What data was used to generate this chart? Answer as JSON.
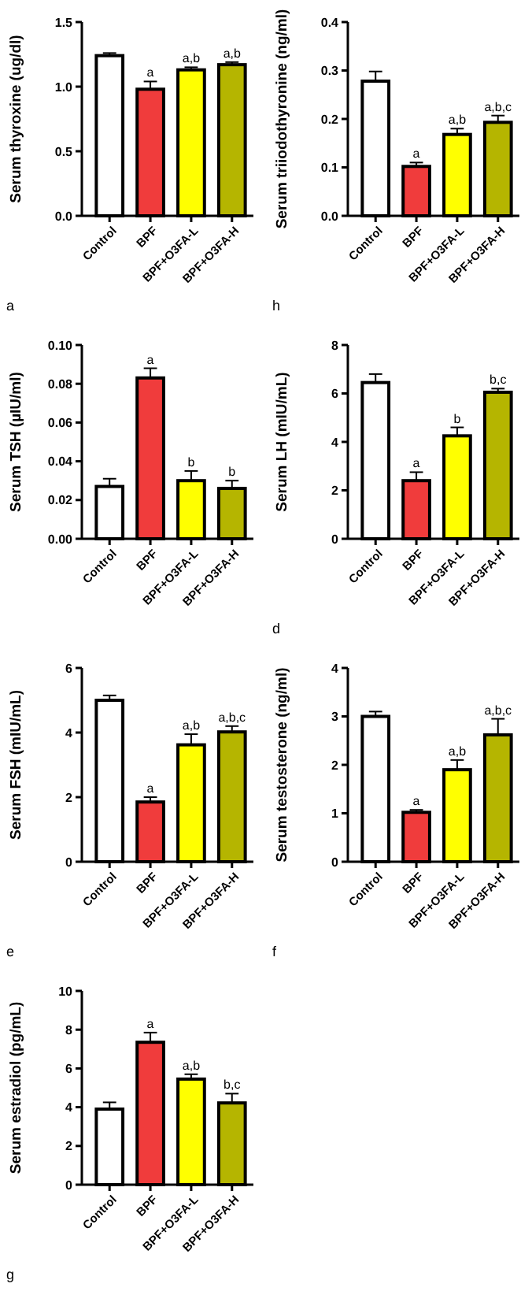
{
  "chart_data": [
    {
      "type": "bar",
      "ylabel": "Serum thyroxine (ug/dl)",
      "categories": [
        "Control",
        "BPF",
        "BPF+O3FA-L",
        "BPF+O3FA-H"
      ],
      "colors": [
        "#ffffff",
        "#f03c3c",
        "#ffff00",
        "#b5b500"
      ],
      "values": [
        1.24,
        0.98,
        1.13,
        1.17
      ],
      "errors": [
        [
          1.24,
          1.26
        ],
        [
          0.98,
          1.04
        ],
        [
          1.13,
          1.15
        ],
        [
          1.17,
          1.19
        ]
      ],
      "ylim": [
        0,
        1.5
      ],
      "yticks": [
        {
          "value": 0,
          "label": "0.0"
        },
        0.5,
        {
          "value": 1,
          "label": "1.0"
        },
        1.5
      ],
      "annotations": [
        {
          "text": "a",
          "x": "BPF",
          "y": 1.04
        },
        {
          "text": "a,b",
          "x": "BPF+O3FA-L",
          "y": 1.15
        },
        {
          "text": "a,b",
          "x": "BPF+O3FA-H",
          "y": 1.19
        },
        "a"
      ]
    },
    {
      "type": "bar",
      "ylabel": "Serum triiodothyronine (ng/ml)",
      "categories": [
        "Control",
        "BPF",
        "BPF+O3FA-L",
        "BPF+O3FA-H"
      ],
      "colors": [
        "#ffffff",
        "#f03c3c",
        "#ffff00",
        "#b5b500"
      ],
      "values": [
        0.278,
        0.102,
        0.168,
        0.193
      ],
      "errors": [
        [
          0.278,
          0.298
        ],
        [
          0.102,
          0.11
        ],
        [
          0.168,
          0.18
        ],
        [
          0.193,
          0.207
        ]
      ],
      "ylim": [
        0,
        0.4
      ],
      "yticks": [
        {
          "value": 0,
          "label": "0.0"
        },
        0.1,
        0.2,
        0.3,
        0.4
      ],
      "annotations": [
        {
          "text": "a",
          "x": "BPF",
          "y": 0.11
        },
        {
          "text": "a,b",
          "x": "BPF+O3FA-L",
          "y": 0.18
        },
        {
          "text": "a,b,c",
          "x": "BPF+O3FA-H",
          "y": 0.207
        },
        "h"
      ]
    },
    {
      "type": "bar",
      "ylabel": "Serum TSH (µIU/ml)",
      "categories": [
        "Control",
        "BPF",
        "BPF+O3FA-L",
        "BPF+O3FA-H"
      ],
      "colors": [
        "#ffffff",
        "#f03c3c",
        "#ffff00",
        "#b5b500"
      ],
      "values": [
        0.027,
        0.083,
        0.03,
        0.026
      ],
      "errors": [
        [
          0.027,
          0.031
        ],
        [
          0.083,
          0.088
        ],
        [
          0.03,
          0.035
        ],
        [
          0.026,
          0.03
        ]
      ],
      "ylim": [
        0,
        0.1
      ],
      "yticks": [
        {
          "value": 0,
          "label": "0.00"
        },
        0.02,
        0.04,
        0.06,
        0.08,
        {
          "value": 0.1,
          "label": "0.10"
        }
      ],
      "annotations": [
        {
          "text": "a",
          "x": "BPF",
          "y": 0.088
        },
        {
          "text": "b",
          "x": "BPF+O3FA-L",
          "y": 0.035
        },
        {
          "text": "b",
          "x": "BPF+O3FA-H",
          "y": 0.03
        }
      ]
    },
    {
      "type": "bar",
      "ylabel": "Serum LH (mIU/mL)",
      "categories": [
        "Control",
        "BPF",
        "BPF+O3FA-L",
        "BPF+O3FA-H"
      ],
      "colors": [
        "#ffffff",
        "#f03c3c",
        "#ffff00",
        "#b5b500"
      ],
      "values": [
        6.45,
        2.4,
        4.25,
        6.05
      ],
      "errors": [
        [
          6.45,
          6.8
        ],
        [
          2.4,
          2.75
        ],
        [
          4.25,
          4.6
        ],
        [
          6.05,
          6.2
        ]
      ],
      "ylim": [
        0,
        8
      ],
      "yticks": [
        0,
        2,
        4,
        6,
        8
      ],
      "annotations": [
        {
          "text": "a",
          "x": "BPF",
          "y": 2.75
        },
        {
          "text": "b",
          "x": "BPF+O3FA-L",
          "y": 4.6
        },
        {
          "text": "b,c",
          "x": "BPF+O3FA-H",
          "y": 6.2
        },
        "d"
      ]
    },
    {
      "type": "bar",
      "ylabel": "Serum FSH (mIU/mL)",
      "categories": [
        "Control",
        "BPF",
        "BPF+O3FA-L",
        "BPF+O3FA-H"
      ],
      "colors": [
        "#ffffff",
        "#f03c3c",
        "#ffff00",
        "#b5b500"
      ],
      "values": [
        5.0,
        1.85,
        3.62,
        4.02
      ],
      "errors": [
        [
          5.0,
          5.15
        ],
        [
          1.85,
          2.0
        ],
        [
          3.62,
          3.95
        ],
        [
          4.02,
          4.2
        ]
      ],
      "ylim": [
        0,
        6
      ],
      "yticks": [
        0,
        2,
        4,
        6
      ],
      "annotations": [
        {
          "text": "a",
          "x": "BPF",
          "y": 2.0
        },
        {
          "text": "a,b",
          "x": "BPF+O3FA-L",
          "y": 3.95
        },
        {
          "text": "a,b,c",
          "x": "BPF+O3FA-H",
          "y": 4.2
        },
        "e"
      ]
    },
    {
      "type": "bar",
      "ylabel": "Serum testosterone (ng/ml)",
      "categories": [
        "Control",
        "BPF",
        "BPF+O3FA-L",
        "BPF+O3FA-H"
      ],
      "colors": [
        "#ffffff",
        "#f03c3c",
        "#ffff00",
        "#b5b500"
      ],
      "values": [
        3.0,
        1.02,
        1.9,
        2.62
      ],
      "errors": [
        [
          3.0,
          3.1
        ],
        [
          1.02,
          1.07
        ],
        [
          1.9,
          2.1
        ],
        [
          2.62,
          2.95
        ]
      ],
      "ylim": [
        0,
        4
      ],
      "yticks": [
        0,
        1,
        2,
        3,
        4
      ],
      "annotations": [
        {
          "text": "a",
          "x": "BPF",
          "y": 1.07
        },
        {
          "text": "a,b",
          "x": "BPF+O3FA-L",
          "y": 2.1
        },
        {
          "text": "a,b,c",
          "x": "BPF+O3FA-H",
          "y": 2.95
        },
        "f"
      ]
    },
    {
      "type": "bar",
      "ylabel": "Serum estradiol (pg/mL)",
      "categories": [
        "Control",
        "BPF",
        "BPF+O3FA-L",
        "BPF+O3FA-H"
      ],
      "colors": [
        "#ffffff",
        "#f03c3c",
        "#ffff00",
        "#b5b500"
      ],
      "values": [
        3.9,
        7.35,
        5.45,
        4.22
      ],
      "errors": [
        [
          3.9,
          4.25
        ],
        [
          7.35,
          7.85
        ],
        [
          5.45,
          5.7
        ],
        [
          4.22,
          4.7
        ]
      ],
      "ylim": [
        0,
        10
      ],
      "yticks": [
        0,
        2,
        4,
        6,
        8,
        10
      ],
      "annotations": [
        {
          "text": "a",
          "x": "BPF",
          "y": 7.85
        },
        {
          "text": "a,b",
          "x": "BPF+O3FA-L",
          "y": 5.7
        },
        {
          "text": "b,c",
          "x": "BPF+O3FA-H",
          "y": 4.7
        },
        "g"
      ]
    }
  ]
}
